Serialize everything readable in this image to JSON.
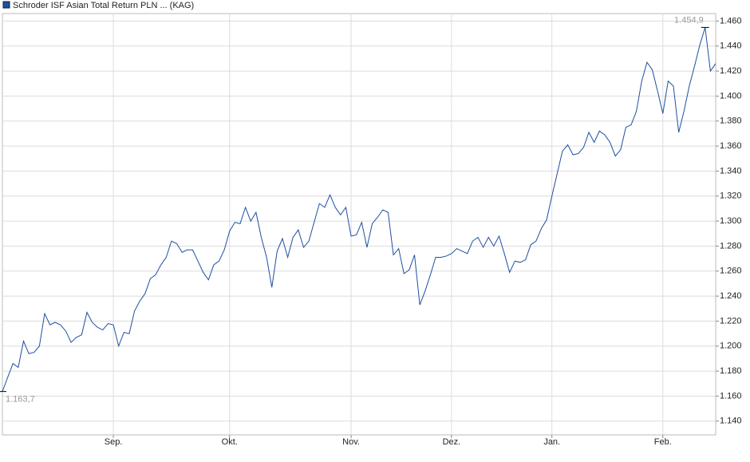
{
  "chart_data": {
    "type": "line",
    "categories": [
      null,
      null,
      null,
      null,
      null,
      null,
      null,
      null,
      null,
      null,
      null,
      null,
      null,
      null,
      null,
      null,
      null,
      null,
      null,
      null,
      null,
      "Sep.",
      null,
      null,
      null,
      null,
      null,
      null,
      null,
      null,
      null,
      null,
      null,
      null,
      null,
      null,
      null,
      null,
      null,
      null,
      null,
      null,
      null,
      "Okt.",
      null,
      null,
      null,
      null,
      null,
      null,
      null,
      null,
      null,
      null,
      null,
      null,
      null,
      null,
      null,
      null,
      null,
      null,
      null,
      null,
      null,
      null,
      "Nov.",
      null,
      null,
      null,
      null,
      null,
      null,
      null,
      null,
      null,
      null,
      null,
      null,
      null,
      null,
      null,
      null,
      null,
      null,
      "Dez.",
      null,
      null,
      null,
      null,
      null,
      null,
      null,
      null,
      null,
      null,
      null,
      null,
      null,
      null,
      null,
      null,
      null,
      null,
      "Jan.",
      null,
      null,
      null,
      null,
      null,
      null,
      null,
      null,
      null,
      null,
      null,
      null,
      null,
      null,
      null,
      null,
      null,
      null,
      null,
      null,
      "Feb.",
      null,
      null,
      null,
      null,
      null,
      null,
      null,
      null,
      null,
      null
    ],
    "series": [
      {
        "name": "Schroder ISF Asian Total Return PLN ... (KAG)",
        "color": "#1f4fa0",
        "values": [
          1.1637,
          1.175,
          1.186,
          1.183,
          1.204,
          1.194,
          1.195,
          1.2,
          1.226,
          1.217,
          1.219,
          1.217,
          1.212,
          1.203,
          1.207,
          1.209,
          1.227,
          1.219,
          1.215,
          1.213,
          1.218,
          1.217,
          1.2,
          1.211,
          1.21,
          1.228,
          1.236,
          1.242,
          1.254,
          1.257,
          1.265,
          1.271,
          1.284,
          1.282,
          1.275,
          1.277,
          1.277,
          1.268,
          1.259,
          1.253,
          1.265,
          1.268,
          1.277,
          1.292,
          1.299,
          1.298,
          1.311,
          1.3,
          1.307,
          1.287,
          1.271,
          1.247,
          1.276,
          1.286,
          1.271,
          1.287,
          1.293,
          1.279,
          1.284,
          1.299,
          1.314,
          1.311,
          1.321,
          1.311,
          1.305,
          1.311,
          1.288,
          1.289,
          1.299,
          1.279,
          1.298,
          1.303,
          1.309,
          1.307,
          1.273,
          1.278,
          1.258,
          1.261,
          1.273,
          1.233,
          1.244,
          1.257,
          1.271,
          1.271,
          1.272,
          1.274,
          1.278,
          1.276,
          1.274,
          1.284,
          1.287,
          1.279,
          1.287,
          1.28,
          1.288,
          1.274,
          1.259,
          1.268,
          1.267,
          1.269,
          1.281,
          1.284,
          1.294,
          1.301,
          1.32,
          1.338,
          1.356,
          1.361,
          1.353,
          1.354,
          1.359,
          1.371,
          1.363,
          1.372,
          1.369,
          1.363,
          1.352,
          1.357,
          1.375,
          1.377,
          1.388,
          1.412,
          1.427,
          1.421,
          1.404,
          1.386,
          1.412,
          1.408,
          1.371,
          1.388,
          1.408,
          1.424,
          1.441,
          1.4549,
          1.42,
          1.426
        ],
        "value_labels": [
          "1.163,7",
          null,
          null,
          null,
          null,
          null,
          null,
          null,
          null,
          null,
          null,
          null,
          null,
          null,
          null,
          null,
          null,
          null,
          null,
          null,
          null,
          null,
          null,
          null,
          null,
          null,
          null,
          null,
          null,
          null,
          null,
          null,
          null,
          null,
          null,
          null,
          null,
          null,
          null,
          null,
          null,
          null,
          null,
          null,
          null,
          null,
          null,
          null,
          null,
          null,
          null,
          null,
          null,
          null,
          null,
          null,
          null,
          null,
          null,
          null,
          null,
          null,
          null,
          null,
          null,
          null,
          null,
          null,
          null,
          null,
          null,
          null,
          null,
          null,
          null,
          null,
          null,
          null,
          null,
          null,
          null,
          null,
          null,
          null,
          null,
          null,
          null,
          null,
          null,
          null,
          null,
          null,
          null,
          null,
          null,
          null,
          null,
          null,
          null,
          null,
          null,
          null,
          null,
          null,
          null,
          null,
          null,
          null,
          null,
          null,
          null,
          null,
          null,
          null,
          null,
          null,
          null,
          null,
          null,
          null,
          null,
          null,
          null,
          null,
          null,
          null,
          null,
          null,
          null,
          null,
          null,
          null,
          null,
          "1.454,9",
          null,
          null
        ]
      }
    ],
    "ylim": [
      1.129,
      1.466
    ],
    "yticks": [
      {
        "value": 1.14,
        "label": "1.140"
      },
      {
        "value": 1.16,
        "label": "1.160"
      },
      {
        "value": 1.18,
        "label": "1.180"
      },
      {
        "value": 1.2,
        "label": "1.200"
      },
      {
        "value": 1.22,
        "label": "1.220"
      },
      {
        "value": 1.24,
        "label": "1.240"
      },
      {
        "value": 1.26,
        "label": "1.260"
      },
      {
        "value": 1.28,
        "label": "1.280"
      },
      {
        "value": 1.3,
        "label": "1.300"
      },
      {
        "value": 1.32,
        "label": "1.320"
      },
      {
        "value": 1.34,
        "label": "1.340"
      },
      {
        "value": 1.36,
        "label": "1.360"
      },
      {
        "value": 1.38,
        "label": "1.380"
      },
      {
        "value": 1.4,
        "label": "1.400"
      },
      {
        "value": 1.42,
        "label": "1.420"
      },
      {
        "value": 1.44,
        "label": "1.440"
      },
      {
        "value": 1.46,
        "label": "1.460"
      }
    ],
    "grid": true,
    "legend": "top-left"
  }
}
